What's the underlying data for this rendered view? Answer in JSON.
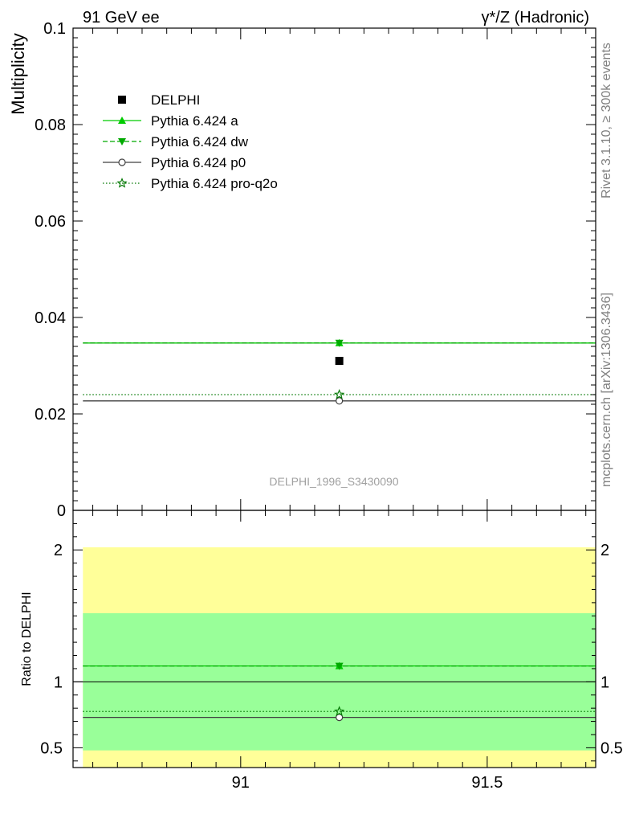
{
  "header": {
    "left": "91 GeV ee",
    "right": "γ*/Z (Hadronic)"
  },
  "side_labels": {
    "rivet": "Rivet 3.1.10, ≥ 300k events",
    "mcplots": "mcplots.cern.ch [arXiv:1306.3436]"
  },
  "watermark": "DELPHI_1996_S3430090",
  "colors": {
    "data": "#000000",
    "pythia_a": "#00cc00",
    "pythia_dw": "#00aa00",
    "pythia_p0": "#404040",
    "pythia_proq2o": "#007700",
    "band_inner": "#99ff99",
    "band_outer": "#ffff99"
  },
  "chart_data": [
    {
      "type": "line",
      "panel": "main",
      "ylabel": "Multiplicity",
      "xlim": [
        90.66,
        91.72
      ],
      "ylim": [
        0,
        0.1
      ],
      "yticks": [
        "0",
        "0.02",
        "0.04",
        "0.06",
        "0.08",
        "0.1"
      ],
      "legend_position": "top-left",
      "data": {
        "name": "DELPHI",
        "x": 91.2,
        "y": 0.031,
        "marker": "square"
      },
      "series": [
        {
          "name": "Pythia 6.424 a",
          "x": [
            90.68,
            91.72
          ],
          "y": [
            0.0347,
            0.0347
          ],
          "marker_x": 91.2,
          "style": "solid",
          "marker": "triangle-up"
        },
        {
          "name": "Pythia 6.424 dw",
          "x": [
            90.68,
            91.72
          ],
          "y": [
            0.0347,
            0.0347
          ],
          "marker_x": 91.2,
          "style": "dashed",
          "marker": "triangle-down"
        },
        {
          "name": "Pythia 6.424 p0",
          "x": [
            90.68,
            91.72
          ],
          "y": [
            0.0227,
            0.0227
          ],
          "marker_x": 91.2,
          "style": "solid",
          "marker": "circle"
        },
        {
          "name": "Pythia 6.424 pro-q2o",
          "x": [
            90.68,
            91.72
          ],
          "y": [
            0.024,
            0.024
          ],
          "marker_x": 91.2,
          "style": "dotted",
          "marker": "star"
        }
      ]
    },
    {
      "type": "line",
      "panel": "ratio",
      "ylabel": "Ratio to DELPHI",
      "xlabel": "",
      "xlim": [
        90.66,
        91.72
      ],
      "ylim": [
        0.35,
        2.3
      ],
      "yticks": [
        "0.5",
        "1",
        "2"
      ],
      "xticks": [
        "91",
        "91.5"
      ],
      "bands": {
        "inner": [
          0.48,
          1.52
        ],
        "outer": [
          0.35,
          2.02
        ]
      },
      "series": [
        {
          "name": "Pythia 6.424 a",
          "y": 1.12
        },
        {
          "name": "Pythia 6.424 dw",
          "y": 1.12
        },
        {
          "name": "Pythia 6.424 p0",
          "y": 0.73
        },
        {
          "name": "Pythia 6.424 pro-q2o",
          "y": 0.775
        }
      ]
    }
  ]
}
